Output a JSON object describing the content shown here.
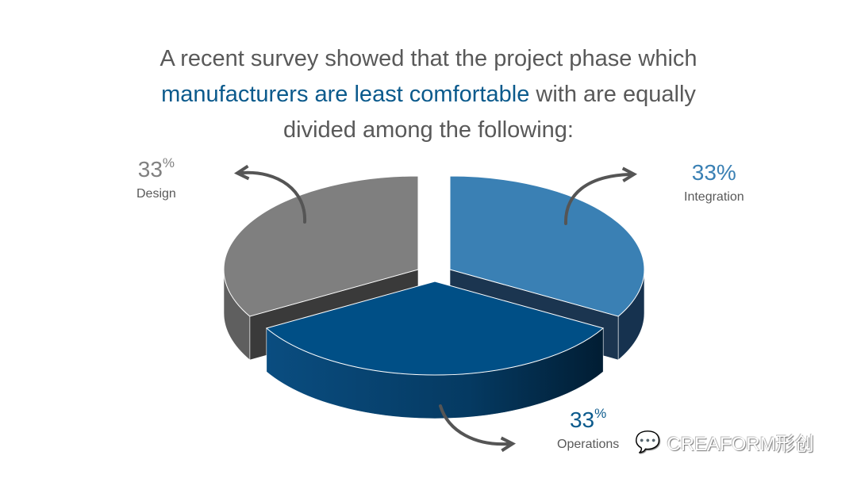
{
  "title": {
    "line1": "A recent survey showed that the project phase which",
    "highlight": "manufacturers are least comfortable",
    "line2_rest": " with are equally",
    "line3": "divided among the following:"
  },
  "colors": {
    "design": "#7f7f7f",
    "integration": "#3a80b4",
    "operations": "#004f86",
    "highlight": "#0b5a8c",
    "arrow": "#555555"
  },
  "chart_data": {
    "type": "pie",
    "style": "3d-exploded",
    "categories": [
      "Design",
      "Integration",
      "Operations"
    ],
    "values": [
      33,
      33,
      33
    ],
    "labels": [
      {
        "value": "33",
        "unit": "%",
        "name": "Design"
      },
      {
        "value": "33",
        "unit": "%",
        "name": "Integration"
      },
      {
        "value": "33",
        "unit": "%",
        "name": "Operations"
      }
    ]
  },
  "watermark": {
    "text": "CREAFORM形创",
    "icon": "wechat-icon"
  }
}
